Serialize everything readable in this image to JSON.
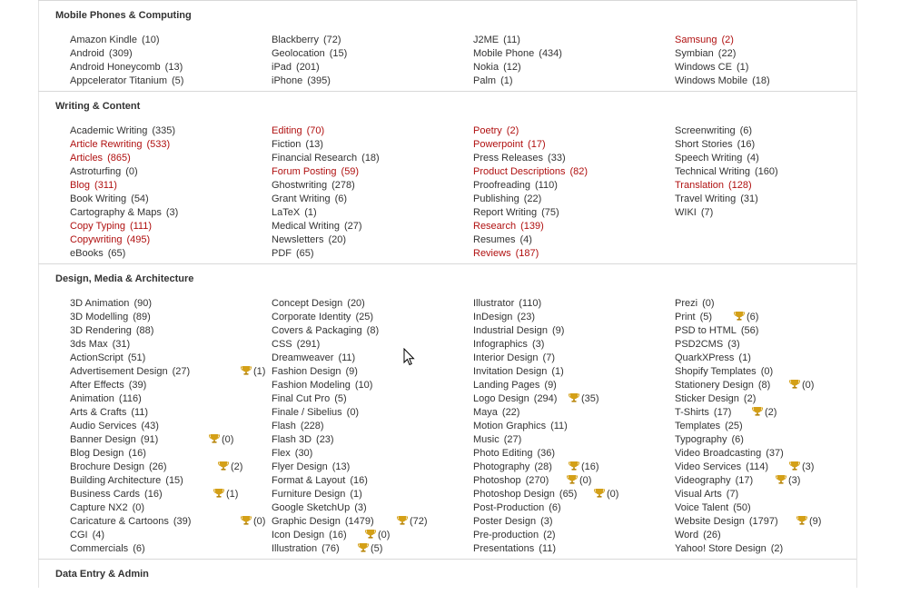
{
  "colors": {
    "text": "#333333",
    "highlight": "#b01010",
    "divider": "#d8d8d8",
    "trophy": "#d4a017"
  },
  "sections": [
    {
      "title": "Mobile Phones & Computing",
      "columns": [
        [
          {
            "label": "Amazon Kindle",
            "count": "(10)"
          },
          {
            "label": "Android",
            "count": "(309)"
          },
          {
            "label": "Android Honeycomb",
            "count": "(13)"
          },
          {
            "label": "Appcelerator Titanium",
            "count": "(5)"
          }
        ],
        [
          {
            "label": "Blackberry",
            "count": "(72)"
          },
          {
            "label": "Geolocation",
            "count": "(15)"
          },
          {
            "label": "iPad",
            "count": "(201)"
          },
          {
            "label": "iPhone",
            "count": "(395)"
          }
        ],
        [
          {
            "label": "J2ME",
            "count": "(11)"
          },
          {
            "label": "Mobile Phone",
            "count": "(434)"
          },
          {
            "label": "Nokia",
            "count": "(12)"
          },
          {
            "label": "Palm",
            "count": "(1)"
          }
        ],
        [
          {
            "label": "Samsung",
            "count": "(2)",
            "hl": true
          },
          {
            "label": "Symbian",
            "count": "(22)"
          },
          {
            "label": "Windows CE",
            "count": "(1)"
          },
          {
            "label": "Windows Mobile",
            "count": "(18)"
          }
        ]
      ]
    },
    {
      "title": "Writing & Content",
      "columns": [
        [
          {
            "label": "Academic Writing",
            "count": "(335)"
          },
          {
            "label": "Article Rewriting",
            "count": "(533)",
            "hl": true
          },
          {
            "label": "Articles",
            "count": "(865)",
            "hl": true
          },
          {
            "label": "Astroturfing",
            "count": "(0)"
          },
          {
            "label": "Blog",
            "count": "(311)",
            "hl": true
          },
          {
            "label": "Book Writing",
            "count": "(54)"
          },
          {
            "label": "Cartography & Maps",
            "count": "(3)"
          },
          {
            "label": "Copy Typing",
            "count": "(111)",
            "hl": true
          },
          {
            "label": "Copywriting",
            "count": "(495)",
            "hl": true
          },
          {
            "label": "eBooks",
            "count": "(65)"
          }
        ],
        [
          {
            "label": "Editing",
            "count": "(70)",
            "hl": true
          },
          {
            "label": "Fiction",
            "count": "(13)"
          },
          {
            "label": "Financial Research",
            "count": "(18)"
          },
          {
            "label": "Forum Posting",
            "count": "(59)",
            "hl": true
          },
          {
            "label": "Ghostwriting",
            "count": "(278)"
          },
          {
            "label": "Grant Writing",
            "count": "(6)"
          },
          {
            "label": "LaTeX",
            "count": "(1)"
          },
          {
            "label": "Medical Writing",
            "count": "(27)"
          },
          {
            "label": "Newsletters",
            "count": "(20)"
          },
          {
            "label": "PDF",
            "count": "(65)"
          }
        ],
        [
          {
            "label": "Poetry",
            "count": "(2)",
            "hl": true
          },
          {
            "label": "Powerpoint",
            "count": "(17)",
            "hl": true
          },
          {
            "label": "Press Releases",
            "count": "(33)"
          },
          {
            "label": "Product Descriptions",
            "count": "(82)",
            "hl": true
          },
          {
            "label": "Proofreading",
            "count": "(110)"
          },
          {
            "label": "Publishing",
            "count": "(22)"
          },
          {
            "label": "Report Writing",
            "count": "(75)"
          },
          {
            "label": "Research",
            "count": "(139)",
            "hl": true
          },
          {
            "label": "Resumes",
            "count": "(4)"
          },
          {
            "label": "Reviews",
            "count": "(187)",
            "hl": true
          }
        ],
        [
          {
            "label": "Screenwriting",
            "count": "(6)"
          },
          {
            "label": "Short Stories",
            "count": "(16)"
          },
          {
            "label": "Speech Writing",
            "count": "(4)"
          },
          {
            "label": "Technical Writing",
            "count": "(160)"
          },
          {
            "label": "Translation",
            "count": "(128)",
            "hl": true
          },
          {
            "label": "Travel Writing",
            "count": "(31)"
          },
          {
            "label": "WIKI",
            "count": "(7)"
          }
        ]
      ]
    },
    {
      "title": "Design, Media & Architecture",
      "columns": [
        [
          {
            "label": "3D Animation",
            "count": "(90)"
          },
          {
            "label": "3D Modelling",
            "count": "(89)"
          },
          {
            "label": "3D Rendering",
            "count": "(88)"
          },
          {
            "label": "3ds Max",
            "count": "(31)"
          },
          {
            "label": "ActionScript",
            "count": "(51)"
          },
          {
            "label": "Advertisement Design",
            "count": "(27)",
            "trophy": "(1)"
          },
          {
            "label": "After Effects",
            "count": "(39)"
          },
          {
            "label": "Animation",
            "count": "(116)"
          },
          {
            "label": "Arts & Crafts",
            "count": "(11)"
          },
          {
            "label": "Audio Services",
            "count": "(43)"
          },
          {
            "label": "Banner Design",
            "count": "(91)",
            "trophy": "(0)"
          },
          {
            "label": "Blog Design",
            "count": "(16)"
          },
          {
            "label": "Brochure Design",
            "count": "(26)",
            "trophy": "(2)"
          },
          {
            "label": "Building Architecture",
            "count": "(15)"
          },
          {
            "label": "Business Cards",
            "count": "(16)",
            "trophy": "(1)"
          },
          {
            "label": "Capture NX2",
            "count": "(0)"
          },
          {
            "label": "Caricature & Cartoons",
            "count": "(39)",
            "trophy": "(0)"
          },
          {
            "label": "CGI",
            "count": "(4)"
          },
          {
            "label": "Commercials",
            "count": "(6)"
          }
        ],
        [
          {
            "label": "Concept Design",
            "count": "(20)"
          },
          {
            "label": "Corporate Identity",
            "count": "(25)"
          },
          {
            "label": "Covers & Packaging",
            "count": "(8)"
          },
          {
            "label": "CSS",
            "count": "(291)"
          },
          {
            "label": "Dreamweaver",
            "count": "(11)"
          },
          {
            "label": "Fashion Design",
            "count": "(9)"
          },
          {
            "label": "Fashion Modeling",
            "count": "(10)"
          },
          {
            "label": "Final Cut Pro",
            "count": "(5)"
          },
          {
            "label": "Finale / Sibelius",
            "count": "(0)"
          },
          {
            "label": "Flash",
            "count": "(228)"
          },
          {
            "label": "Flash 3D",
            "count": "(23)"
          },
          {
            "label": "Flex",
            "count": "(30)"
          },
          {
            "label": "Flyer Design",
            "count": "(13)"
          },
          {
            "label": "Format & Layout",
            "count": "(16)"
          },
          {
            "label": "Furniture Design",
            "count": "(1)"
          },
          {
            "label": "Google SketchUp",
            "count": "(3)"
          },
          {
            "label": "Graphic Design",
            "count": "(1479)",
            "trophy": "(72)"
          },
          {
            "label": "Icon Design",
            "count": "(16)",
            "trophy": "(0)"
          },
          {
            "label": "Illustration",
            "count": "(76)",
            "trophy": "(5)"
          }
        ],
        [
          {
            "label": "Illustrator",
            "count": "(110)"
          },
          {
            "label": "InDesign",
            "count": "(23)"
          },
          {
            "label": "Industrial Design",
            "count": "(9)"
          },
          {
            "label": "Infographics",
            "count": "(3)"
          },
          {
            "label": "Interior Design",
            "count": "(7)"
          },
          {
            "label": "Invitation Design",
            "count": "(1)"
          },
          {
            "label": "Landing Pages",
            "count": "(9)"
          },
          {
            "label": "Logo Design",
            "count": "(294)",
            "trophy": "(35)"
          },
          {
            "label": "Maya",
            "count": "(22)"
          },
          {
            "label": "Motion Graphics",
            "count": "(11)"
          },
          {
            "label": "Music",
            "count": "(27)"
          },
          {
            "label": "Photo Editing",
            "count": "(36)"
          },
          {
            "label": "Photography",
            "count": "(28)",
            "trophy": "(16)"
          },
          {
            "label": "Photoshop",
            "count": "(270)",
            "trophy": "(0)"
          },
          {
            "label": "Photoshop Design",
            "count": "(65)",
            "trophy": "(0)"
          },
          {
            "label": "Post-Production",
            "count": "(6)"
          },
          {
            "label": "Poster Design",
            "count": "(3)"
          },
          {
            "label": "Pre-production",
            "count": "(2)"
          },
          {
            "label": "Presentations",
            "count": "(11)"
          }
        ],
        [
          {
            "label": "Prezi",
            "count": "(0)"
          },
          {
            "label": "Print",
            "count": "(5)",
            "trophy": "(6)"
          },
          {
            "label": "PSD to HTML",
            "count": "(56)"
          },
          {
            "label": "PSD2CMS",
            "count": "(3)"
          },
          {
            "label": "QuarkXPress",
            "count": "(1)"
          },
          {
            "label": "Shopify Templates",
            "count": "(0)"
          },
          {
            "label": "Stationery Design",
            "count": "(8)",
            "trophy": "(0)"
          },
          {
            "label": "Sticker Design",
            "count": "(2)"
          },
          {
            "label": "T-Shirts",
            "count": "(17)",
            "trophy": "(2)"
          },
          {
            "label": "Templates",
            "count": "(25)"
          },
          {
            "label": "Typography",
            "count": "(6)"
          },
          {
            "label": "Video Broadcasting",
            "count": "(37)"
          },
          {
            "label": "Video Services",
            "count": "(114)",
            "trophy": "(3)"
          },
          {
            "label": "Videography",
            "count": "(17)",
            "trophy": "(3)"
          },
          {
            "label": "Visual Arts",
            "count": "(7)"
          },
          {
            "label": "Voice Talent",
            "count": "(50)"
          },
          {
            "label": "Website Design",
            "count": "(1797)",
            "trophy": "(9)"
          },
          {
            "label": "Word",
            "count": "(26)"
          },
          {
            "label": "Yahoo! Store Design",
            "count": "(2)"
          }
        ]
      ]
    },
    {
      "title": "Data Entry & Admin",
      "columns": []
    }
  ]
}
